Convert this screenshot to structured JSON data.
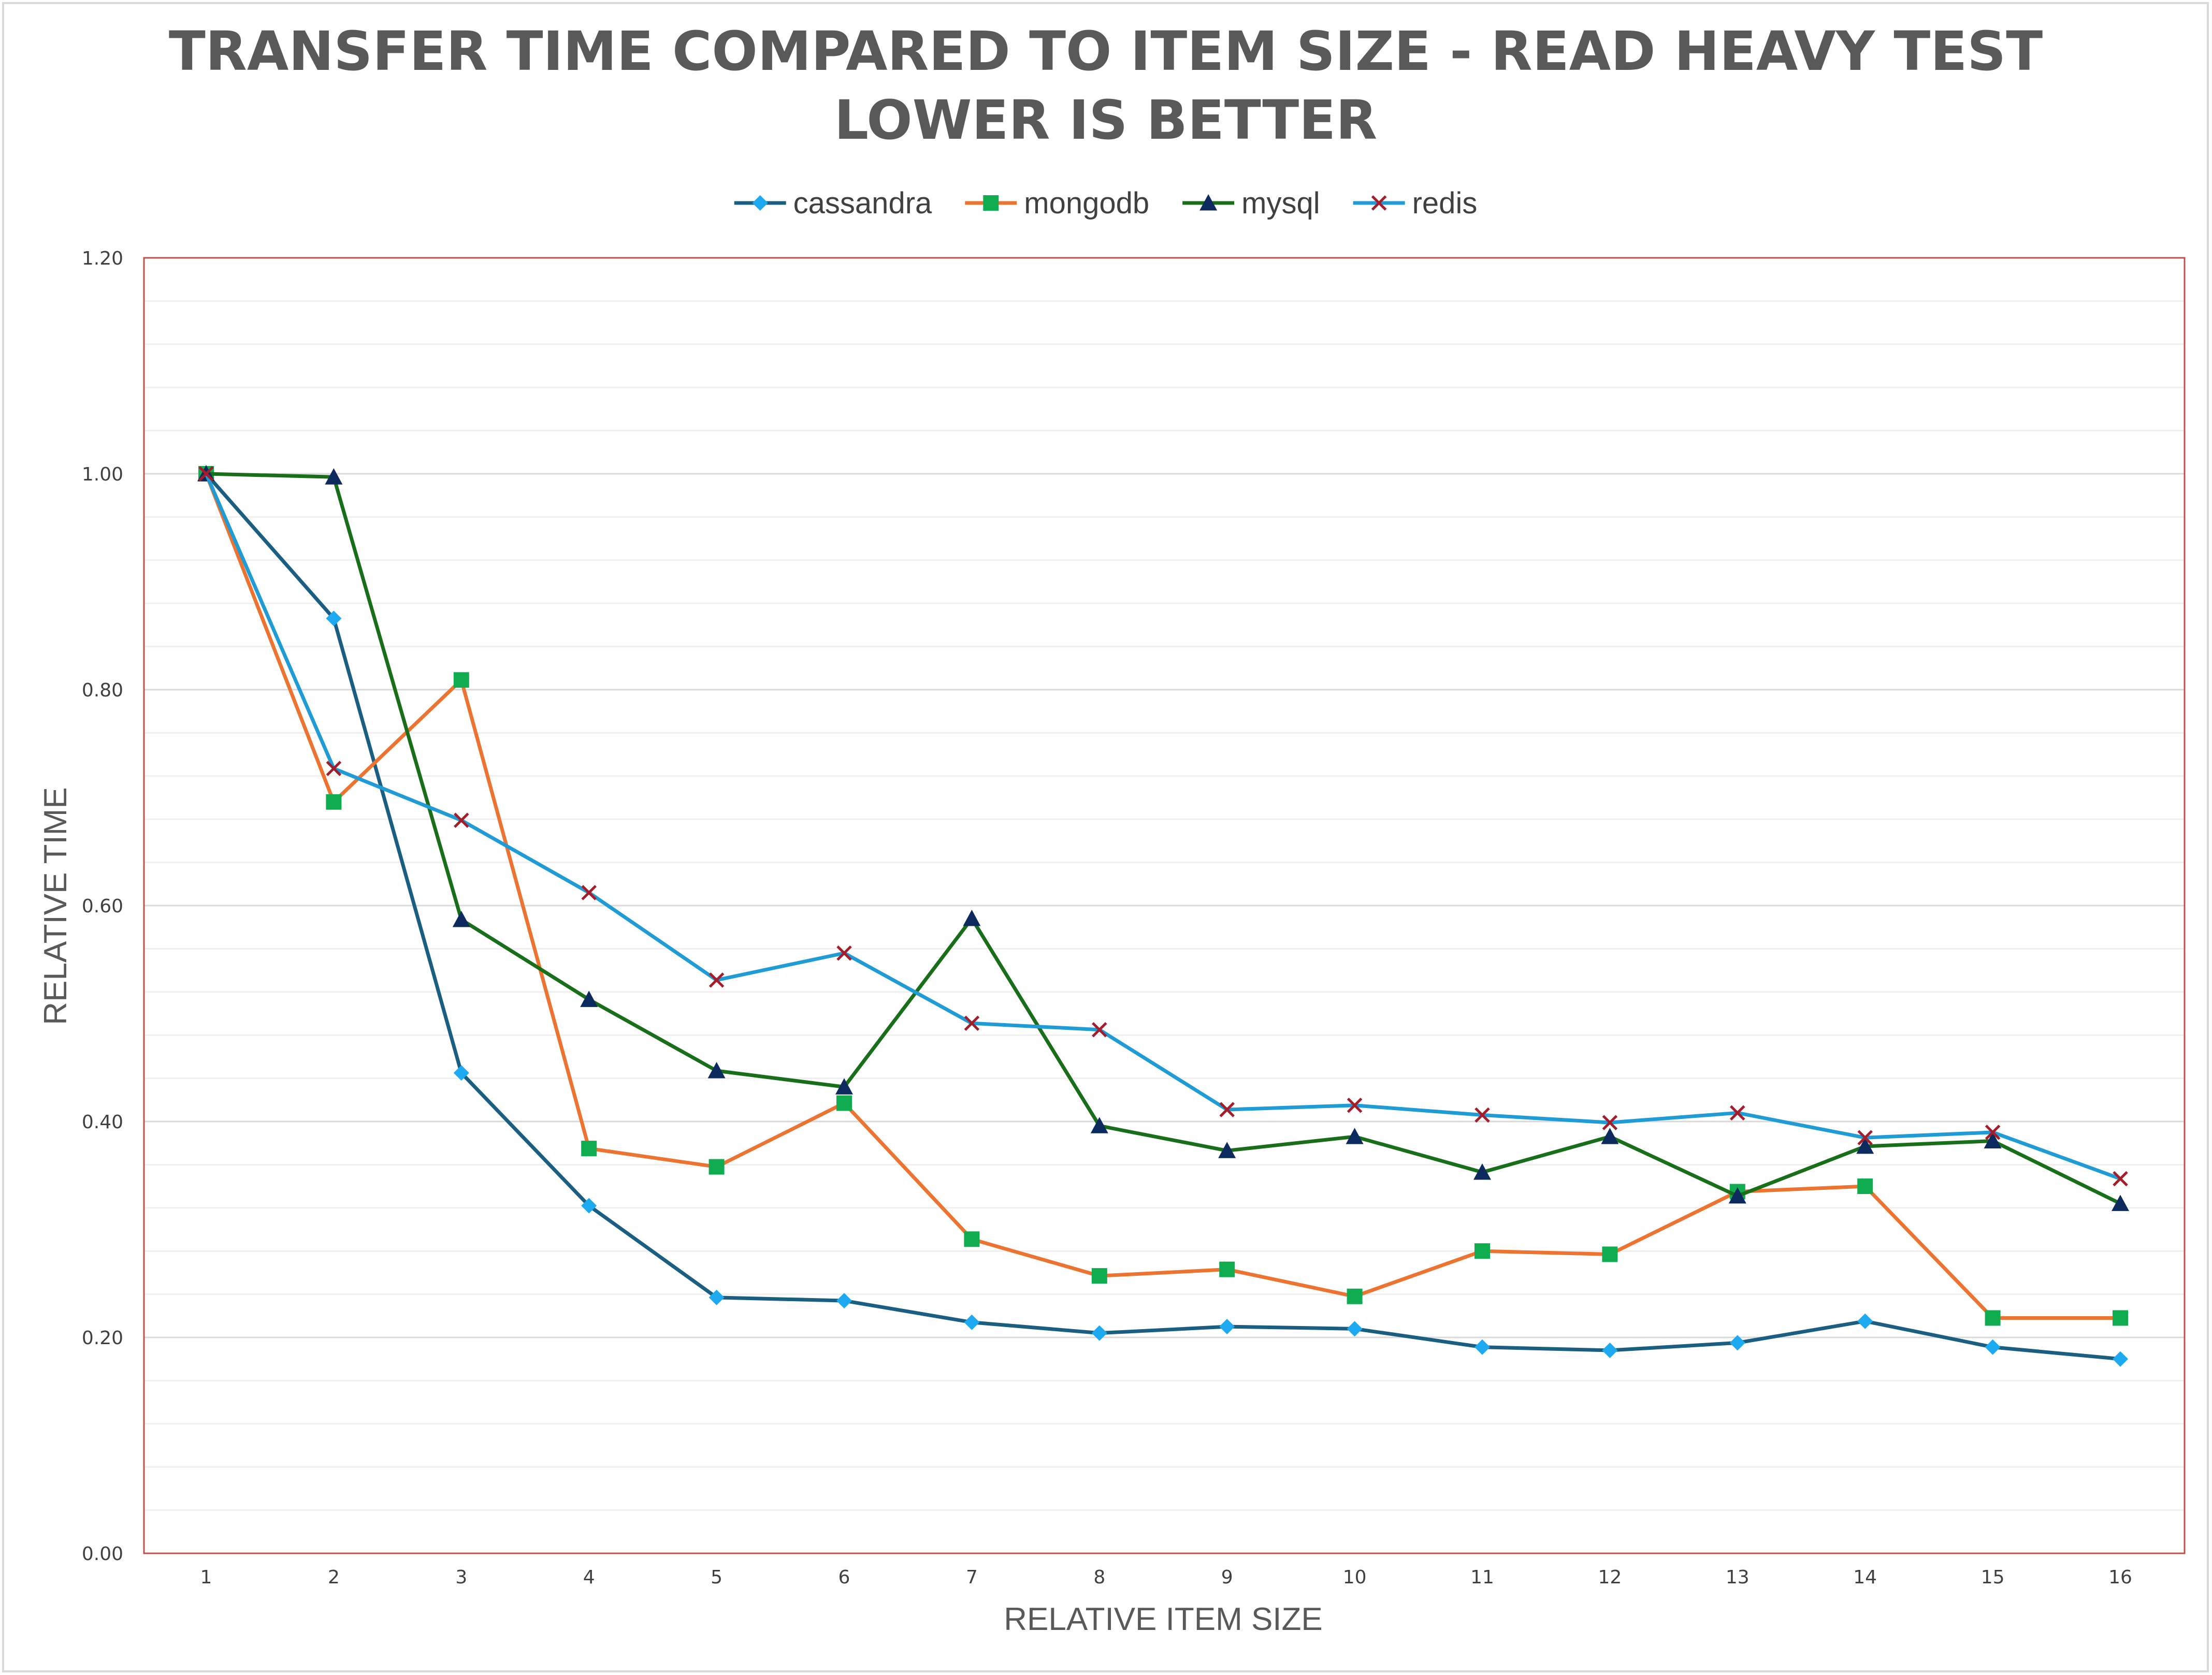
{
  "chart_data": {
    "type": "line",
    "title": "TRANSFER TIME COMPARED TO ITEM SIZE - READ HEAVY TEST",
    "subtitle": "LOWER IS BETTER",
    "xlabel": "RELATIVE ITEM SIZE",
    "ylabel": "RELATIVE TIME",
    "x": [
      1,
      2,
      3,
      4,
      5,
      6,
      7,
      8,
      9,
      10,
      11,
      12,
      13,
      14,
      15,
      16
    ],
    "x_tick_labels": [
      "1",
      "2",
      "3",
      "4",
      "5",
      "6",
      "7",
      "8",
      "9",
      "10",
      "11",
      "12",
      "13",
      "14",
      "15",
      "16"
    ],
    "ylim": [
      0,
      1.2
    ],
    "y_tick_labels": [
      "0.00",
      "0.20",
      "0.40",
      "0.60",
      "0.80",
      "1.00",
      "1.20"
    ],
    "grid": true,
    "legend_position": "top-center",
    "series": [
      {
        "name": "cassandra",
        "line_color": "#1a5e82",
        "marker_color": "#1eaaf0",
        "marker": "diamond",
        "values": [
          1.0,
          0.866,
          0.445,
          0.322,
          0.237,
          0.234,
          0.214,
          0.204,
          0.21,
          0.208,
          0.191,
          0.188,
          0.195,
          0.215,
          0.191,
          0.18
        ]
      },
      {
        "name": "mongodb",
        "line_color": "#ed7430",
        "marker_color": "#0fad4f",
        "marker": "square",
        "values": [
          1.0,
          0.696,
          0.809,
          0.375,
          0.358,
          0.417,
          0.291,
          0.257,
          0.263,
          0.238,
          0.28,
          0.277,
          0.335,
          0.34,
          0.218,
          0.218
        ]
      },
      {
        "name": "mysql",
        "line_color": "#196f19",
        "marker_color": "#0d2a5e",
        "marker": "triangle",
        "values": [
          1.0,
          0.997,
          0.587,
          0.513,
          0.447,
          0.432,
          0.588,
          0.396,
          0.373,
          0.386,
          0.353,
          0.386,
          0.331,
          0.377,
          0.382,
          0.324
        ]
      },
      {
        "name": "redis",
        "line_color": "#1f9bd6",
        "marker_color": "#a31d2a",
        "marker": "x",
        "values": [
          1.0,
          0.727,
          0.679,
          0.612,
          0.531,
          0.556,
          0.491,
          0.485,
          0.411,
          0.415,
          0.406,
          0.399,
          0.408,
          0.385,
          0.39,
          0.347
        ]
      }
    ]
  },
  "colors": {
    "plot_border": "#c0504d",
    "major_grid": "#d9d9d9",
    "minor_grid": "#efefef",
    "frame_border": "#d9d9d9"
  }
}
